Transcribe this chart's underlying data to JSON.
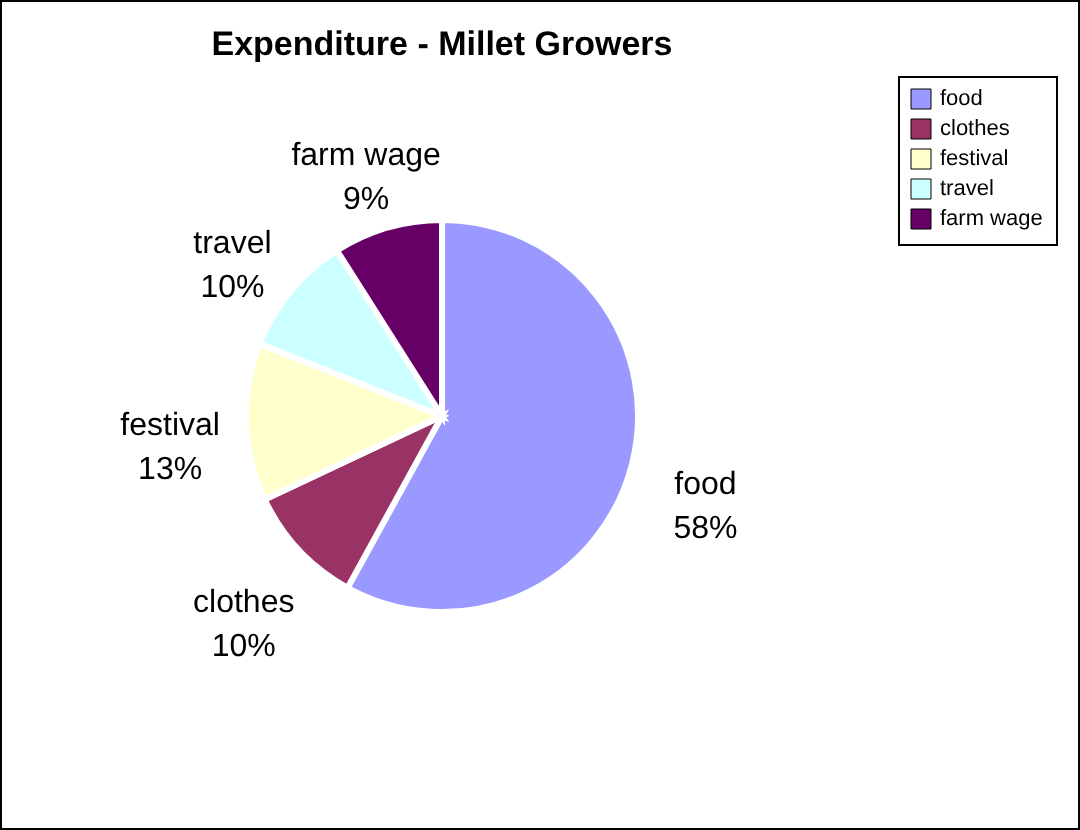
{
  "chart_data": {
    "type": "pie",
    "title": "Expenditure - Millet Growers",
    "categories": [
      "food",
      "clothes",
      "festival",
      "travel",
      "farm wage"
    ],
    "values": [
      58,
      10,
      13,
      10,
      9
    ],
    "value_labels": [
      "58%",
      "10%",
      "13%",
      "10%",
      "9%"
    ],
    "colors": [
      "#9999ff",
      "#993366",
      "#ffffcc",
      "#ccffff",
      "#660066"
    ],
    "legend": "right"
  }
}
